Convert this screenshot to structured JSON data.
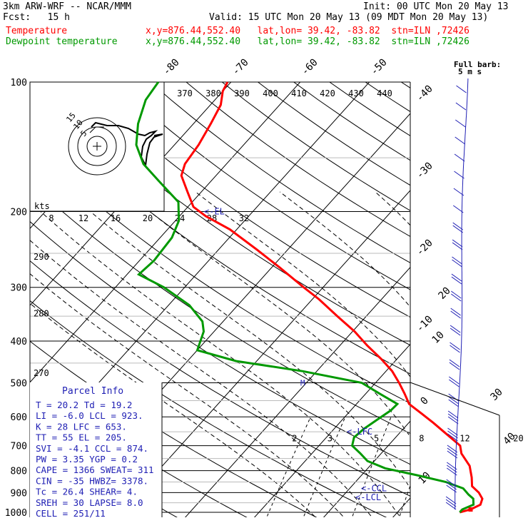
{
  "header": {
    "model": "3km ARW-WRF -- NCAR/MMM",
    "init": "Init: 00 UTC Mon 20 May 13",
    "fcst": "Fcst:   15 h",
    "valid": "Valid: 15 UTC Mon 20 May 13 (09 MDT Mon 20 May 13)",
    "temp_label": "Temperature",
    "dew_label": "Dewpoint temperature",
    "temp_info": "x,y=876.44,552.40   lat,lon= 39.42, -83.82  stn=ILN ,72426",
    "dew_info": "x,y=876.44,552.40   lat,lon= 39.42, -83.82  stn=ILN ,72426"
  },
  "colors": {
    "temperature": "#ff0000",
    "dewpoint": "#009900",
    "parcel_text": "#1f1fb4",
    "grid": "#000000"
  },
  "chart_data": {
    "type": "line",
    "subtype": "skew-T log-P diagram",
    "pressure_axis": {
      "ticks": [
        100,
        200,
        300,
        400,
        500,
        600,
        700,
        800,
        900,
        1000
      ],
      "labels": [
        "100",
        "200",
        "300",
        "400",
        "500",
        "600",
        "700",
        "800",
        "900",
        "1000"
      ],
      "scale": "log",
      "reversed": true
    },
    "isotherm_labels": [
      "-80",
      "-70",
      "-60",
      "-50",
      "-40",
      "-30",
      "-20",
      "-10",
      "0",
      "10",
      "20",
      "30",
      "40"
    ],
    "isotherm_values": [
      -80,
      -70,
      -60,
      -50,
      -40,
      -30,
      -20,
      -10,
      0,
      10,
      20,
      30,
      40
    ],
    "theta_e_labels": [
      "370",
      "380",
      "390",
      "400",
      "410",
      "420",
      "430",
      "440"
    ],
    "dry_adiabat_labels": [
      {
        "text": "290",
        "p": 255
      },
      {
        "text": "280",
        "p": 345
      },
      {
        "text": "270",
        "p": 475
      }
    ],
    "mixing_ratio_labels": [
      "2",
      "3",
      "5",
      "8",
      "12",
      "20"
    ],
    "mixing_ratio_values": [
      2,
      3,
      5,
      8,
      12,
      20
    ],
    "series": [
      {
        "name": "Temperature",
        "color": "#ff0000",
        "points": [
          [
            1000,
            19.0
          ],
          [
            985,
            20.2
          ],
          [
            960,
            21.0
          ],
          [
            930,
            20.5
          ],
          [
            900,
            19.2
          ],
          [
            870,
            17.4
          ],
          [
            830,
            16.2
          ],
          [
            780,
            14.4
          ],
          [
            730,
            11.6
          ],
          [
            700,
            10.4
          ],
          [
            660,
            7.1
          ],
          [
            620,
            3.6
          ],
          [
            590,
            0.7
          ],
          [
            560,
            -2.4
          ],
          [
            530,
            -4.4
          ],
          [
            500,
            -6.6
          ],
          [
            470,
            -9.1
          ],
          [
            440,
            -12.3
          ],
          [
            410,
            -16.0
          ],
          [
            380,
            -19.7
          ],
          [
            350,
            -24.2
          ],
          [
            320,
            -29.0
          ],
          [
            300,
            -32.8
          ],
          [
            270,
            -38.8
          ],
          [
            245,
            -44.5
          ],
          [
            220,
            -51.0
          ],
          [
            205,
            -56.2
          ],
          [
            195,
            -59.2
          ],
          [
            180,
            -62.0
          ],
          [
            165,
            -65.0
          ],
          [
            155,
            -66.0
          ],
          [
            140,
            -66.5
          ],
          [
            125,
            -67.5
          ],
          [
            113,
            -68.5
          ],
          [
            105,
            -70.0
          ],
          [
            100,
            -70.5
          ]
        ]
      },
      {
        "name": "Dewpoint temperature",
        "color": "#009900",
        "points": [
          [
            1000,
            19.0
          ],
          [
            985,
            19.0
          ],
          [
            960,
            20.0
          ],
          [
            930,
            19.2
          ],
          [
            910,
            18.0
          ],
          [
            880,
            16.4
          ],
          [
            850,
            13.0
          ],
          [
            820,
            8.0
          ],
          [
            790,
            2.5
          ],
          [
            760,
            -1.0
          ],
          [
            730,
            -3.0
          ],
          [
            700,
            -5.2
          ],
          [
            670,
            -6.0
          ],
          [
            640,
            -5.7
          ],
          [
            610,
            -5.0
          ],
          [
            580,
            -4.2
          ],
          [
            560,
            -4.1
          ],
          [
            530,
            -8.0
          ],
          [
            500,
            -12.0
          ],
          [
            470,
            -22.0
          ],
          [
            445,
            -33.0
          ],
          [
            420,
            -40.0
          ],
          [
            380,
            -41.5
          ],
          [
            360,
            -43.0
          ],
          [
            330,
            -47.0
          ],
          [
            300,
            -53.0
          ],
          [
            280,
            -58.3
          ],
          [
            260,
            -57.9
          ],
          [
            230,
            -58.3
          ],
          [
            210,
            -59.5
          ],
          [
            190,
            -62.0
          ],
          [
            170,
            -67.5
          ],
          [
            155,
            -72.0
          ],
          [
            140,
            -75.5
          ],
          [
            125,
            -78.0
          ],
          [
            110,
            -80.0
          ],
          [
            100,
            -80.5
          ]
        ]
      }
    ],
    "annotations": [
      {
        "text": "<-EL",
        "p": 200
      },
      {
        "text": "<-LFC",
        "p": 650
      },
      {
        "text": "<-CCL",
        "p": 880
      },
      {
        "text": "<-LCL",
        "p": 923
      }
    ],
    "wind_panel": {
      "units": "kts",
      "speed_labels": [
        "8",
        "12",
        "16",
        "20",
        "24",
        "28",
        "32"
      ],
      "rings_kts": [
        5,
        10,
        15
      ],
      "ring_labels": [
        "5",
        "10",
        "15"
      ]
    }
  },
  "parcel_info": {
    "title": "Parcel Info",
    "rows": [
      "T   =   20.2  Td  =  19.2",
      "LI  =   -6.0  LCL =  923.",
      "K   =     28  LFC =  653.",
      "TT  =     55  EL  =  205.",
      "SVI =   -4.1  CCL =  874.",
      "PW  =   3.35  YGP =   0.2",
      "CAPE =  1366  SWEAT=  311",
      "CIN  =   -35  HWBZ= 3378.",
      "Tc  =   26.4  SHEAR=   4.",
      "SREH =    30  LAPSE=  8.0",
      "CELL = 251/11"
    ]
  },
  "wind_barbs": {
    "title": "Full barb:",
    "subtitle": "5 m s",
    "speed_labels": [
      "10",
      "20",
      "30",
      "40"
    ]
  }
}
